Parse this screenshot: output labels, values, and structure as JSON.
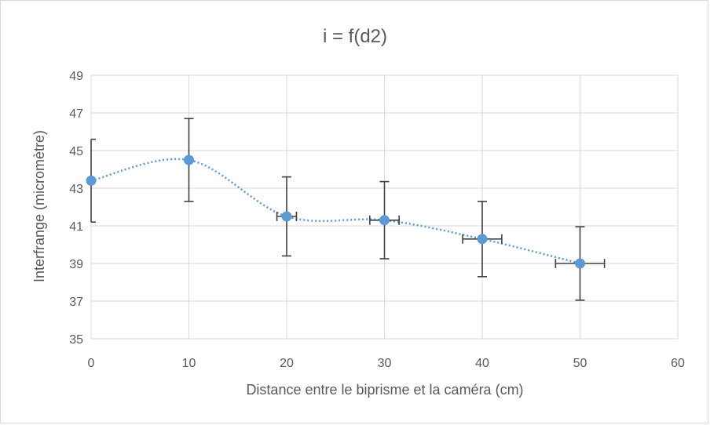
{
  "chart_data": {
    "type": "scatter",
    "title": "i = f(d2)",
    "xlabel": "Distance entre le biprisme et la caméra (cm)",
    "ylabel": "Interfrange (micromètre)",
    "xlim": [
      0,
      60
    ],
    "ylim": [
      35,
      49
    ],
    "x_ticks": [
      0,
      10,
      20,
      30,
      40,
      50,
      60
    ],
    "y_ticks": [
      35,
      37,
      39,
      41,
      43,
      45,
      47,
      49
    ],
    "grid": true,
    "trendline": "smoothed dotted curve",
    "colors": {
      "marker": "#5b9bd5",
      "error_bar": "#404040",
      "grid": "#d9d9d9",
      "text": "#595959"
    },
    "points": [
      {
        "x": 0,
        "y": 43.4,
        "y_err": 2.2,
        "x_err": 0
      },
      {
        "x": 10,
        "y": 44.5,
        "y_err": 2.2,
        "x_err": 0
      },
      {
        "x": 20,
        "y": 41.5,
        "y_err": 2.1,
        "x_err": 1
      },
      {
        "x": 30,
        "y": 41.3,
        "y_err": 2.05,
        "x_err": 1.5
      },
      {
        "x": 40,
        "y": 40.3,
        "y_err": 2.0,
        "x_err": 2
      },
      {
        "x": 50,
        "y": 39.0,
        "y_err": 1.95,
        "x_err": 2.5
      }
    ]
  }
}
